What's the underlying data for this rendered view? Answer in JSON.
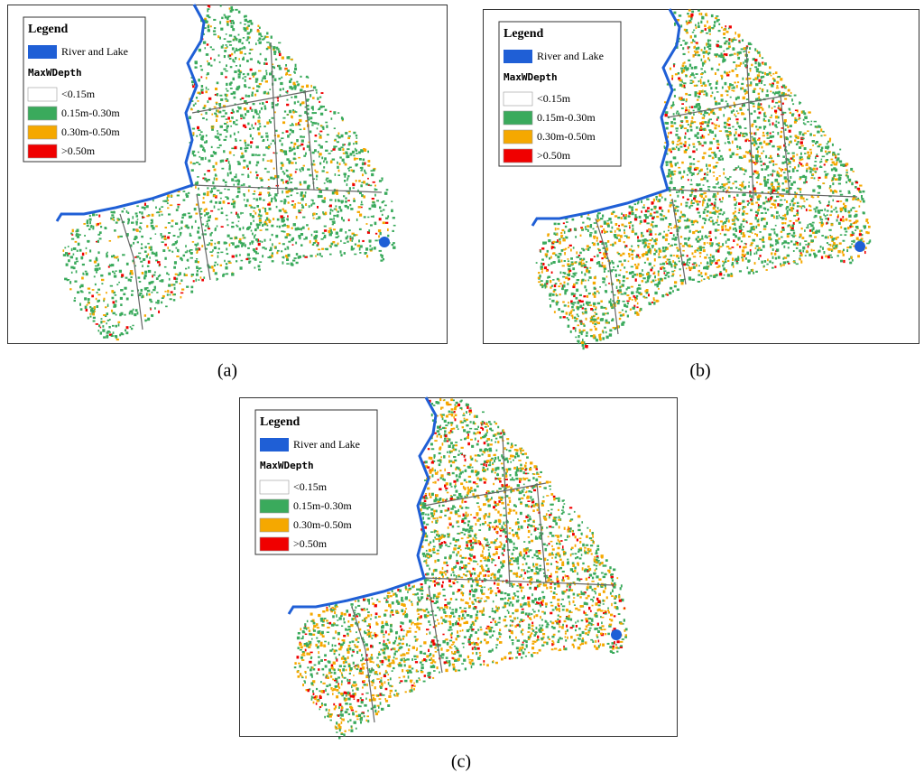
{
  "panels": [
    {
      "label": "(a)"
    },
    {
      "label": "(b)"
    },
    {
      "label": "(c)"
    }
  ],
  "legend": {
    "title": "Legend",
    "river": {
      "label": "River and Lake",
      "color": "#1f5fd6"
    },
    "subtitle": "MaxWDepth",
    "items": [
      {
        "label": "<0.15m",
        "color": "#ffffff"
      },
      {
        "label": "0.15m-0.30m",
        "color": "#3aaa5c"
      },
      {
        "label": "0.30m-0.50m",
        "color": "#f5a800"
      },
      {
        "label": ">0.50m",
        "color": "#f00000"
      }
    ]
  }
}
